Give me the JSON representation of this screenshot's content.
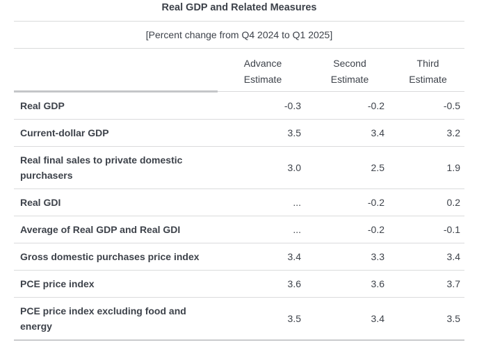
{
  "page": {
    "title": "Real GDP and Related Measures",
    "subtitle": "[Percent change from Q4 2024 to Q1 2025]"
  },
  "colors": {
    "text": "#3d424a",
    "separator_light": "#d9dadb",
    "header_label_underline": "#c4c6c8",
    "bottom_border": "#c9cbcd"
  },
  "table": {
    "col_headers": [
      {
        "line1": "Advance",
        "line2": "Estimate"
      },
      {
        "line1": "Second",
        "line2": "Estimate"
      },
      {
        "line1": "Third",
        "line2": "Estimate"
      }
    ],
    "rows": [
      {
        "label": "Real GDP",
        "values": [
          "-0.3",
          "-0.2",
          "-0.5"
        ]
      },
      {
        "label": "Current-dollar GDP",
        "values": [
          "3.5",
          "3.4",
          "3.2"
        ]
      },
      {
        "label": "Real final sales to private domestic purchasers",
        "values": [
          "3.0",
          "2.5",
          "1.9"
        ]
      },
      {
        "label": "Real GDI",
        "values": [
          "...",
          "-0.2",
          "0.2"
        ]
      },
      {
        "label": "Average of Real GDP and Real GDI",
        "values": [
          "...",
          "-0.2",
          "-0.1"
        ]
      },
      {
        "label": "Gross domestic purchases price index",
        "values": [
          "3.4",
          "3.3",
          "3.4"
        ]
      },
      {
        "label": "PCE price index",
        "values": [
          "3.6",
          "3.6",
          "3.7"
        ]
      },
      {
        "label": "PCE price index excluding food and energy",
        "values": [
          "3.5",
          "3.4",
          "3.5"
        ]
      }
    ]
  }
}
